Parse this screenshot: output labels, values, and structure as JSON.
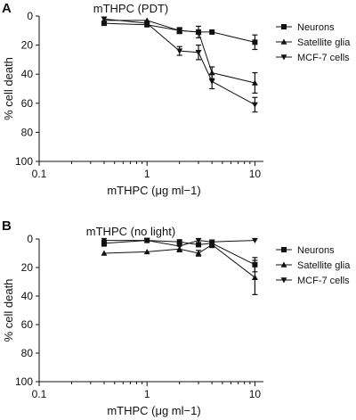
{
  "chart_data": [
    {
      "panel": "A",
      "type": "line",
      "title": "mTHPC (PDT)",
      "xlabel": "mTHPC (μg ml−1)",
      "ylabel": "% cell death",
      "xscale": "log",
      "xlim": [
        0.1,
        12
      ],
      "ylim": [
        0,
        100
      ],
      "yaxis_inverted": true,
      "x_ticks": [
        0.1,
        1,
        10
      ],
      "x_tick_labels": [
        "0.1",
        "1",
        "10"
      ],
      "y_ticks": [
        0,
        20,
        40,
        60,
        80,
        100
      ],
      "y_tick_labels": [
        "0",
        "20",
        "40",
        "60",
        "80",
        "100"
      ],
      "legend": "right",
      "series": [
        {
          "name": "Neurons",
          "marker": "square",
          "x": [
            0.4,
            1,
            2,
            3,
            4,
            10
          ],
          "y": [
            5,
            6,
            10,
            11,
            11,
            18
          ],
          "err": [
            1,
            1,
            2,
            1,
            1,
            5
          ]
        },
        {
          "name": "Satellite glia",
          "marker": "triangle-up",
          "x": [
            0.4,
            1,
            2,
            3,
            4,
            10
          ],
          "y": [
            3,
            3,
            10,
            11,
            39,
            46
          ],
          "err": [
            1,
            1,
            2,
            4,
            4,
            7
          ]
        },
        {
          "name": "MCF-7 cells",
          "marker": "triangle-down",
          "x": [
            0.4,
            1,
            2,
            3,
            4,
            10
          ],
          "y": [
            2,
            5,
            24,
            25,
            45,
            61
          ],
          "err": [
            1,
            1,
            3,
            5,
            5,
            5
          ]
        }
      ]
    },
    {
      "panel": "B",
      "type": "line",
      "title": "mTHPC (no light)",
      "xlabel": "mTHPC (μg ml−1)",
      "ylabel": "% cell death",
      "xscale": "log",
      "xlim": [
        0.1,
        12
      ],
      "ylim": [
        0,
        100
      ],
      "yaxis_inverted": true,
      "x_ticks": [
        0.1,
        1,
        10
      ],
      "x_tick_labels": [
        "0.1",
        "1",
        "10"
      ],
      "y_ticks": [
        0,
        20,
        40,
        60,
        80,
        100
      ],
      "y_tick_labels": [
        "0",
        "20",
        "40",
        "60",
        "80",
        "100"
      ],
      "legend": "right",
      "series": [
        {
          "name": "Neurons",
          "marker": "square",
          "x": [
            0.4,
            1,
            2,
            3,
            4,
            10
          ],
          "y": [
            3,
            1,
            2,
            4,
            3,
            18
          ],
          "err": [
            2,
            1,
            1,
            1,
            1,
            5
          ]
        },
        {
          "name": "Satellite glia",
          "marker": "triangle-up",
          "x": [
            0.4,
            1,
            2,
            3,
            4,
            10
          ],
          "y": [
            10,
            9,
            7,
            10,
            4,
            27
          ],
          "err": [
            1,
            1,
            2,
            2,
            2,
            12
          ]
        },
        {
          "name": "MCF-7 cells",
          "marker": "triangle-down",
          "x": [
            0.4,
            1,
            2,
            3,
            4,
            10
          ],
          "y": [
            1,
            1,
            5,
            1,
            2,
            1
          ],
          "err": [
            1,
            1,
            1,
            1,
            1,
            1
          ]
        }
      ]
    }
  ]
}
